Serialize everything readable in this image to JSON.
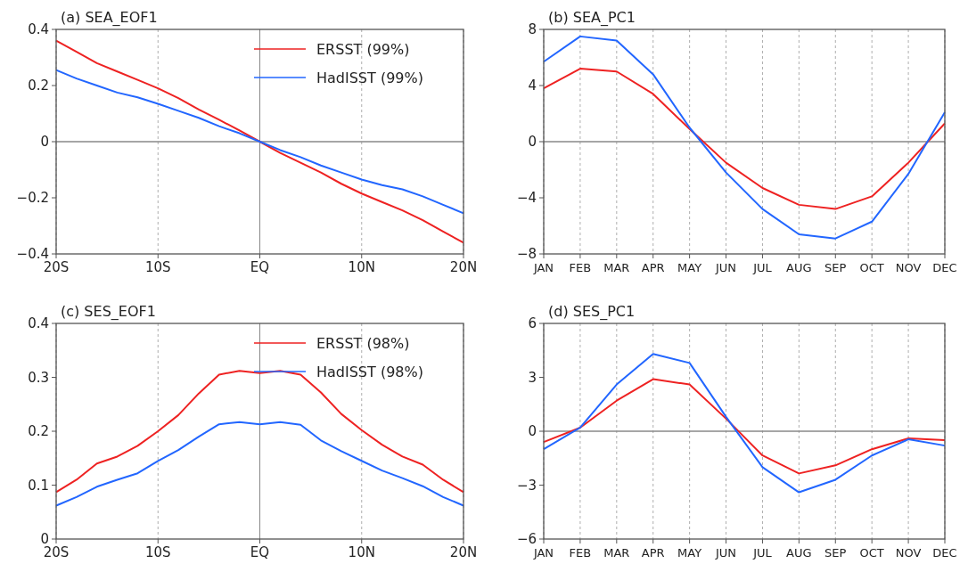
{
  "chart_data": [
    {
      "type": "line",
      "title": "(a) SEA_EOF1",
      "x": [
        -20,
        -18,
        -16,
        -14,
        -12,
        -10,
        -8,
        -6,
        -4,
        -2,
        0,
        2,
        4,
        6,
        8,
        10,
        12,
        14,
        16,
        18,
        20
      ],
      "xlim": [
        -20,
        20
      ],
      "xticks": [
        {
          "value": -20,
          "label": "20S"
        },
        {
          "value": -10,
          "label": "10S"
        },
        {
          "value": 0,
          "label": "EQ"
        },
        {
          "value": 10,
          "label": "10N"
        },
        {
          "value": 20,
          "label": "20N"
        }
      ],
      "ylim": [
        -0.4,
        0.4
      ],
      "yticks": [
        -0.4,
        -0.2,
        0,
        0.2,
        0.4
      ],
      "grid": "x",
      "legend": "top right",
      "ref_lines": [
        {
          "axis": "y",
          "value": 0
        },
        {
          "axis": "x",
          "value": 0
        }
      ],
      "series": [
        {
          "name": "ERSST (99%)",
          "color": "#ee2222",
          "values": [
            0.36,
            0.32,
            0.28,
            0.25,
            0.22,
            0.19,
            0.155,
            0.115,
            0.078,
            0.04,
            0,
            -0.04,
            -0.075,
            -0.11,
            -0.15,
            -0.185,
            -0.215,
            -0.245,
            -0.28,
            -0.32,
            -0.36
          ]
        },
        {
          "name": "HadISST (99%)",
          "color": "#2266ff",
          "values": [
            0.255,
            0.225,
            0.2,
            0.175,
            0.158,
            0.135,
            0.11,
            0.085,
            0.055,
            0.03,
            0,
            -0.03,
            -0.055,
            -0.085,
            -0.11,
            -0.135,
            -0.155,
            -0.17,
            -0.195,
            -0.225,
            -0.255
          ]
        }
      ]
    },
    {
      "type": "line",
      "title": "(b) SEA_PC1",
      "categories": [
        "JAN",
        "FEB",
        "MAR",
        "APR",
        "MAY",
        "JUN",
        "JUL",
        "AUG",
        "SEP",
        "OCT",
        "NOV",
        "DEC"
      ],
      "ylim": [
        -8,
        8
      ],
      "yticks": [
        -8,
        -4,
        0,
        4,
        8
      ],
      "grid": "x",
      "ref_lines": [
        {
          "axis": "y",
          "value": 0
        }
      ],
      "series": [
        {
          "color": "#ee2222",
          "values": [
            3.8,
            5.2,
            5.0,
            3.4,
            0.9,
            -1.5,
            -3.3,
            -4.5,
            -4.8,
            -3.9,
            -1.5,
            1.3
          ]
        },
        {
          "color": "#2266ff",
          "values": [
            5.7,
            7.5,
            7.2,
            4.8,
            1.0,
            -2.2,
            -4.8,
            -6.6,
            -6.9,
            -5.7,
            -2.3,
            2.1
          ]
        }
      ]
    },
    {
      "type": "line",
      "title": "(c) SES_EOF1",
      "x": [
        -20,
        -18,
        -16,
        -14,
        -12,
        -10,
        -8,
        -6,
        -4,
        -2,
        0,
        2,
        4,
        6,
        8,
        10,
        12,
        14,
        16,
        18,
        20
      ],
      "xlim": [
        -20,
        20
      ],
      "xticks": [
        {
          "value": -20,
          "label": "20S"
        },
        {
          "value": -10,
          "label": "10S"
        },
        {
          "value": 0,
          "label": "EQ"
        },
        {
          "value": 10,
          "label": "10N"
        },
        {
          "value": 20,
          "label": "20N"
        }
      ],
      "ylim": [
        0,
        0.4
      ],
      "yticks": [
        0,
        0.1,
        0.2,
        0.3,
        0.4
      ],
      "grid": "x",
      "legend": "top right",
      "ref_lines": [
        {
          "axis": "x",
          "value": 0
        }
      ],
      "series": [
        {
          "name": "ERSST (98%)",
          "color": "#ee2222",
          "values": [
            0.087,
            0.11,
            0.14,
            0.153,
            0.173,
            0.2,
            0.23,
            0.27,
            0.305,
            0.312,
            0.308,
            0.312,
            0.305,
            0.272,
            0.232,
            0.202,
            0.175,
            0.153,
            0.138,
            0.11,
            0.087
          ]
        },
        {
          "name": "HadISST (98%)",
          "color": "#2266ff",
          "values": [
            0.062,
            0.078,
            0.097,
            0.11,
            0.122,
            0.145,
            0.165,
            0.19,
            0.213,
            0.217,
            0.213,
            0.217,
            0.212,
            0.183,
            0.163,
            0.145,
            0.127,
            0.113,
            0.098,
            0.078,
            0.062
          ]
        }
      ]
    },
    {
      "type": "line",
      "title": "(d) SES_PC1",
      "categories": [
        "JAN",
        "FEB",
        "MAR",
        "APR",
        "MAY",
        "JUN",
        "JUL",
        "AUG",
        "SEP",
        "OCT",
        "NOV",
        "DEC"
      ],
      "ylim": [
        -6,
        6
      ],
      "yticks": [
        -6,
        -3,
        0,
        3,
        6
      ],
      "grid": "x",
      "ref_lines": [
        {
          "axis": "y",
          "value": 0
        }
      ],
      "series": [
        {
          "color": "#ee2222",
          "values": [
            -0.6,
            0.2,
            1.7,
            2.9,
            2.6,
            0.7,
            -1.35,
            -2.35,
            -1.9,
            -1.0,
            -0.4,
            -0.5
          ]
        },
        {
          "color": "#2266ff",
          "values": [
            -1.0,
            0.2,
            2.6,
            4.3,
            3.8,
            0.8,
            -2.0,
            -3.4,
            -2.7,
            -1.35,
            -0.45,
            -0.8
          ]
        }
      ]
    }
  ]
}
